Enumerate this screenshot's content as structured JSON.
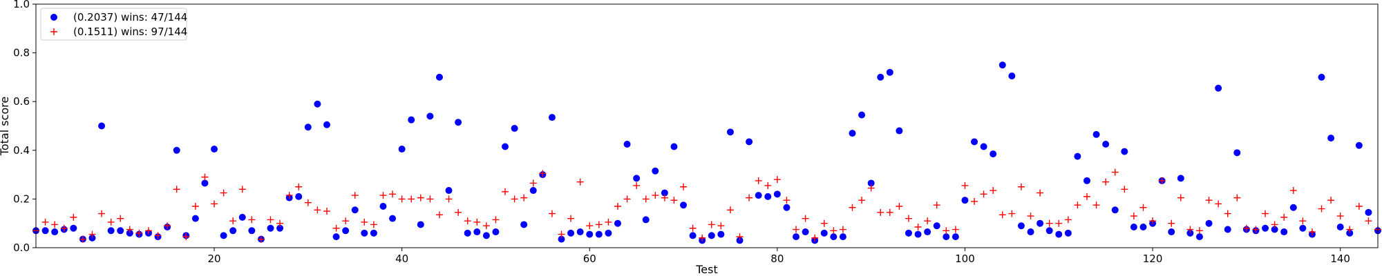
{
  "chart_data": {
    "type": "scatter",
    "xlabel": "Test",
    "ylabel": "Total score",
    "xlim": [
      1,
      144
    ],
    "ylim": [
      0.0,
      1.0
    ],
    "x_ticks": [
      20,
      40,
      60,
      80,
      100,
      120,
      140
    ],
    "x_tick_labels": [
      "20",
      "40",
      "60",
      "80",
      "100",
      "120",
      "140"
    ],
    "y_ticks": [
      0.0,
      0.2,
      0.4,
      0.6,
      0.8,
      1.0
    ],
    "y_tick_labels": [
      "0.0",
      "0.2",
      "0.4",
      "0.6",
      "0.8",
      "1.0"
    ],
    "grid": false,
    "legend_position": "top-left",
    "series": [
      {
        "name": "(0.2037) wins: 47/144",
        "marker": "circle",
        "color": "#0000ff",
        "x": [
          1,
          2,
          3,
          4,
          5,
          6,
          7,
          8,
          9,
          10,
          11,
          12,
          13,
          14,
          15,
          16,
          17,
          18,
          19,
          20,
          21,
          22,
          23,
          24,
          25,
          26,
          27,
          28,
          29,
          30,
          31,
          32,
          33,
          34,
          35,
          36,
          37,
          38,
          39,
          40,
          41,
          42,
          43,
          44,
          45,
          46,
          47,
          48,
          49,
          50,
          51,
          52,
          53,
          54,
          55,
          56,
          57,
          58,
          59,
          60,
          61,
          62,
          63,
          64,
          65,
          66,
          67,
          68,
          69,
          70,
          71,
          72,
          73,
          74,
          75,
          76,
          77,
          78,
          79,
          80,
          81,
          82,
          83,
          84,
          85,
          86,
          87,
          88,
          89,
          90,
          91,
          92,
          93,
          94,
          95,
          96,
          97,
          98,
          99,
          100,
          101,
          102,
          103,
          104,
          105,
          106,
          107,
          108,
          109,
          110,
          111,
          112,
          113,
          114,
          115,
          116,
          117,
          118,
          119,
          120,
          121,
          122,
          123,
          124,
          125,
          126,
          127,
          128,
          129,
          130,
          131,
          132,
          133,
          134,
          135,
          136,
          137,
          138,
          139,
          140,
          141,
          142,
          143,
          144
        ],
        "y": [
          0.07,
          0.07,
          0.065,
          0.075,
          0.08,
          0.035,
          0.04,
          0.5,
          0.07,
          0.07,
          0.06,
          0.055,
          0.06,
          0.045,
          0.085,
          0.4,
          0.05,
          0.12,
          0.265,
          0.405,
          0.05,
          0.07,
          0.125,
          0.07,
          0.035,
          0.08,
          0.08,
          0.205,
          0.21,
          0.495,
          0.59,
          0.505,
          0.045,
          0.07,
          0.155,
          0.06,
          0.06,
          0.17,
          0.12,
          0.405,
          0.525,
          0.095,
          0.54,
          0.7,
          0.235,
          0.515,
          0.06,
          0.065,
          0.05,
          0.065,
          0.415,
          0.49,
          0.095,
          0.235,
          0.3,
          0.535,
          0.035,
          0.06,
          0.065,
          0.055,
          0.055,
          0.06,
          0.1,
          0.425,
          0.285,
          0.115,
          0.315,
          0.225,
          0.415,
          0.175,
          0.05,
          0.03,
          0.05,
          0.055,
          0.475,
          0.03,
          0.435,
          0.215,
          0.21,
          0.22,
          0.165,
          0.045,
          0.065,
          0.03,
          0.06,
          0.045,
          0.045,
          0.47,
          0.545,
          0.265,
          0.7,
          0.72,
          0.48,
          0.06,
          0.055,
          0.065,
          0.09,
          0.045,
          0.045,
          0.195,
          0.435,
          0.415,
          0.385,
          0.75,
          0.705,
          0.09,
          0.065,
          0.1,
          0.07,
          0.055,
          0.06,
          0.375,
          0.275,
          0.465,
          0.425,
          0.155,
          0.395,
          0.085,
          0.085,
          0.1,
          0.275,
          0.065,
          0.285,
          0.06,
          0.045,
          0.1,
          0.655,
          0.075,
          0.39,
          0.075,
          0.07,
          0.08,
          0.075,
          0.065,
          0.165,
          0.08,
          0.055,
          0.7,
          0.45,
          0.085,
          0.06,
          0.42,
          0.145,
          0.07
        ]
      },
      {
        "name": "(0.1511) wins: 97/144",
        "marker": "plus",
        "color": "#ff0000",
        "x": [
          1,
          2,
          3,
          4,
          5,
          6,
          7,
          8,
          9,
          10,
          11,
          12,
          13,
          14,
          15,
          16,
          17,
          18,
          19,
          20,
          21,
          22,
          23,
          24,
          25,
          26,
          27,
          28,
          29,
          30,
          31,
          32,
          33,
          34,
          35,
          36,
          37,
          38,
          39,
          40,
          41,
          42,
          43,
          44,
          45,
          46,
          47,
          48,
          49,
          50,
          51,
          52,
          53,
          54,
          55,
          56,
          57,
          58,
          59,
          60,
          61,
          62,
          63,
          64,
          65,
          66,
          67,
          68,
          69,
          70,
          71,
          72,
          73,
          74,
          75,
          76,
          77,
          78,
          79,
          80,
          81,
          82,
          83,
          84,
          85,
          86,
          87,
          88,
          89,
          90,
          91,
          92,
          93,
          94,
          95,
          96,
          97,
          98,
          99,
          100,
          101,
          102,
          103,
          104,
          105,
          106,
          107,
          108,
          109,
          110,
          111,
          112,
          113,
          114,
          115,
          116,
          117,
          118,
          119,
          120,
          121,
          122,
          123,
          124,
          125,
          126,
          127,
          128,
          129,
          130,
          131,
          132,
          133,
          134,
          135,
          136,
          137,
          138,
          139,
          140,
          141,
          142,
          143,
          144
        ],
        "y": [
          0.07,
          0.105,
          0.095,
          0.08,
          0.125,
          0.035,
          0.055,
          0.14,
          0.105,
          0.12,
          0.075,
          0.06,
          0.07,
          0.05,
          0.09,
          0.24,
          0.045,
          0.17,
          0.29,
          0.18,
          0.225,
          0.11,
          0.24,
          0.115,
          0.035,
          0.115,
          0.1,
          0.215,
          0.25,
          0.185,
          0.155,
          0.15,
          0.08,
          0.11,
          0.215,
          0.105,
          0.095,
          0.215,
          0.22,
          0.2,
          0.2,
          0.205,
          0.2,
          0.135,
          0.2,
          0.145,
          0.11,
          0.105,
          0.09,
          0.115,
          0.23,
          0.2,
          0.205,
          0.265,
          0.305,
          0.14,
          0.055,
          0.12,
          0.27,
          0.09,
          0.095,
          0.105,
          0.17,
          0.2,
          0.255,
          0.2,
          0.215,
          0.205,
          0.195,
          0.25,
          0.08,
          0.04,
          0.095,
          0.09,
          0.155,
          0.045,
          0.205,
          0.275,
          0.255,
          0.28,
          0.195,
          0.075,
          0.12,
          0.04,
          0.1,
          0.07,
          0.075,
          0.165,
          0.195,
          0.245,
          0.145,
          0.145,
          0.17,
          0.12,
          0.085,
          0.11,
          0.175,
          0.07,
          0.075,
          0.255,
          0.19,
          0.22,
          0.235,
          0.135,
          0.14,
          0.25,
          0.13,
          0.225,
          0.1,
          0.1,
          0.115,
          0.175,
          0.21,
          0.175,
          0.27,
          0.31,
          0.24,
          0.13,
          0.165,
          0.11,
          0.275,
          0.1,
          0.205,
          0.075,
          0.07,
          0.195,
          0.18,
          0.14,
          0.205,
          0.08,
          0.075,
          0.14,
          0.095,
          0.125,
          0.235,
          0.11,
          0.065,
          0.16,
          0.195,
          0.13,
          0.075,
          0.17,
          0.11,
          0.075
        ]
      }
    ]
  }
}
